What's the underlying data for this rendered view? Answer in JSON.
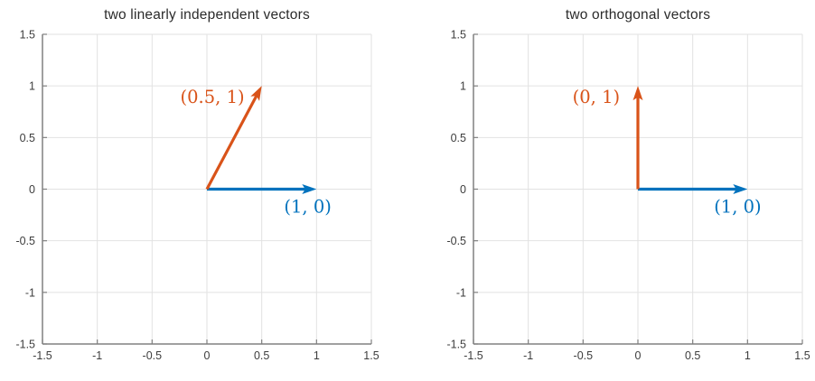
{
  "figure": {
    "background": "#ffffff"
  },
  "palette": {
    "blue": "#0072BD",
    "orange": "#D95319",
    "grid": "#e2e2e2",
    "spine": "#808080",
    "tick_label": "#3d3d3d",
    "title": "#2b2b2b"
  },
  "chart_data": [
    {
      "type": "line",
      "subtype": "vector-quiver",
      "title": "two linearly independent vectors",
      "xlim": [
        -1.5,
        1.5
      ],
      "ylim": [
        -1.5,
        1.5
      ],
      "xticks": [
        -1.5,
        -1,
        -0.5,
        0,
        0.5,
        1,
        1.5
      ],
      "xtick_labels": [
        "-1.5",
        "-1",
        "-0.5",
        "0",
        "0.5",
        "1",
        "1.5"
      ],
      "yticks": [
        -1.5,
        -1,
        -0.5,
        0,
        0.5,
        1,
        1.5
      ],
      "ytick_labels": [
        "-1.5",
        "-1",
        "-0.5",
        "0",
        "0.5",
        "1",
        "1.5"
      ],
      "grid": true,
      "legend": false,
      "series": [
        {
          "name": "vector-(1,0)",
          "from": [
            0,
            0
          ],
          "to": [
            1,
            0
          ],
          "color": "#0072BD",
          "label": "(1, 0)",
          "label_at": [
            0.92,
            -0.17
          ]
        },
        {
          "name": "vector-(0.5,1)",
          "from": [
            0,
            0
          ],
          "to": [
            0.5,
            1
          ],
          "color": "#D95319",
          "label": "(0.5, 1)",
          "label_at": [
            0.05,
            0.89
          ]
        }
      ]
    },
    {
      "type": "line",
      "subtype": "vector-quiver",
      "title": "two orthogonal vectors",
      "xlim": [
        -1.5,
        1.5
      ],
      "ylim": [
        -1.5,
        1.5
      ],
      "xticks": [
        -1.5,
        -1,
        -0.5,
        0,
        0.5,
        1,
        1.5
      ],
      "xtick_labels": [
        "-1.5",
        "-1",
        "-0.5",
        "0",
        "0.5",
        "1",
        "1.5"
      ],
      "yticks": [
        -1.5,
        -1,
        -0.5,
        0,
        0.5,
        1,
        1.5
      ],
      "ytick_labels": [
        "-1.5",
        "-1",
        "-0.5",
        "0",
        "0.5",
        "1",
        "1.5"
      ],
      "grid": true,
      "legend": false,
      "series": [
        {
          "name": "vector-(1,0)",
          "from": [
            0,
            0
          ],
          "to": [
            1,
            0
          ],
          "color": "#0072BD",
          "label": "(1, 0)",
          "label_at": [
            0.91,
            -0.17
          ]
        },
        {
          "name": "vector-(0,1)",
          "from": [
            0,
            0
          ],
          "to": [
            0,
            1
          ],
          "color": "#D95319",
          "label": "(0, 1)",
          "label_at": [
            -0.38,
            0.89
          ]
        }
      ]
    }
  ]
}
